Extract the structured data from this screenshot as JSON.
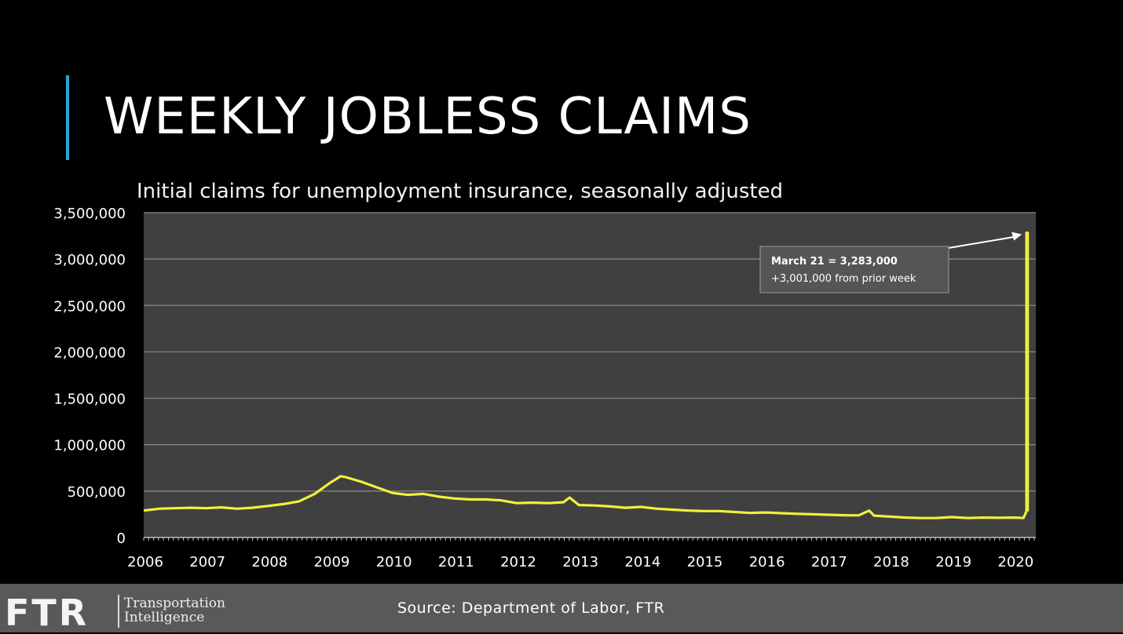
{
  "slide": {
    "title": "WEEKLY JOBLESS CLAIMS",
    "accent_color": "#2aa6d6"
  },
  "chart_data": {
    "type": "line",
    "subtitle": "Initial claims for unemployment insurance, seasonally adjusted",
    "line_color": "#f0f03c",
    "plot_background": "#404040",
    "grid": true,
    "ylim": [
      0,
      3500000
    ],
    "yticks": [
      0,
      500000,
      1000000,
      1500000,
      2000000,
      2500000,
      3000000,
      3500000
    ],
    "ytick_labels": [
      "0",
      "500,000",
      "1,000,000",
      "1,500,000",
      "2,000,000",
      "2,500,000",
      "3,000,000",
      "3,500,000"
    ],
    "xlim": [
      2006.0,
      2020.35
    ],
    "xticks": [
      2006,
      2007,
      2008,
      2009,
      2010,
      2011,
      2012,
      2013,
      2014,
      2015,
      2016,
      2017,
      2018,
      2019,
      2020
    ],
    "xtick_labels": [
      "2006",
      "2007",
      "2008",
      "2009",
      "2010",
      "2011",
      "2012",
      "2013",
      "2014",
      "2015",
      "2016",
      "2017",
      "2018",
      "2019",
      "2020"
    ],
    "series": [
      {
        "x": [
          2006.0,
          2006.25,
          2006.5,
          2006.75,
          2007.0,
          2007.25,
          2007.5,
          2007.75,
          2008.0,
          2008.25,
          2008.5,
          2008.75,
          2009.0,
          2009.17,
          2009.25,
          2009.5,
          2009.75,
          2010.0,
          2010.25,
          2010.5,
          2010.75,
          2011.0,
          2011.25,
          2011.5,
          2011.75,
          2012.0,
          2012.25,
          2012.5,
          2012.75,
          2012.85,
          2013.0,
          2013.25,
          2013.5,
          2013.75,
          2014.0,
          2014.25,
          2014.5,
          2014.75,
          2015.0,
          2015.25,
          2015.5,
          2015.75,
          2016.0,
          2016.25,
          2016.5,
          2016.75,
          2017.0,
          2017.25,
          2017.5,
          2017.67,
          2017.75,
          2018.0,
          2018.25,
          2018.5,
          2018.75,
          2019.0,
          2019.25,
          2019.5,
          2019.75,
          2020.0,
          2020.15,
          2020.2
        ],
        "y": [
          290000,
          310000,
          315000,
          320000,
          315000,
          325000,
          310000,
          320000,
          340000,
          360000,
          390000,
          470000,
          590000,
          660000,
          650000,
          600000,
          540000,
          480000,
          460000,
          470000,
          440000,
          420000,
          410000,
          410000,
          400000,
          370000,
          375000,
          370000,
          380000,
          430000,
          350000,
          345000,
          335000,
          320000,
          330000,
          310000,
          300000,
          290000,
          285000,
          285000,
          275000,
          265000,
          270000,
          262000,
          255000,
          250000,
          245000,
          240000,
          238000,
          290000,
          235000,
          225000,
          215000,
          210000,
          210000,
          220000,
          210000,
          215000,
          212000,
          215000,
          210000,
          282000
        ]
      }
    ],
    "spike": {
      "x_from": 2020.2,
      "x_to": 2020.22,
      "y": 3283000
    },
    "annotation": {
      "line1": "March 21 = 3,283,000",
      "line2": "+3,001,000 from prior week"
    }
  },
  "footer": {
    "logo": "FTR",
    "tagline_line1": "Transportation",
    "tagline_line2": "Intelligence",
    "source": "Source: Department of Labor, FTR"
  }
}
